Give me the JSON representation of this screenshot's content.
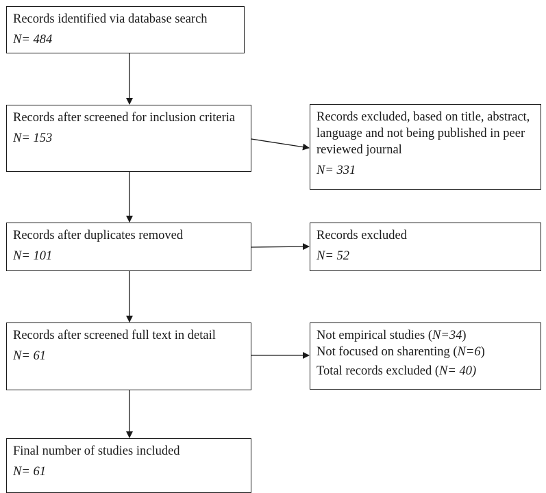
{
  "boxes": {
    "identified": {
      "label": "Records identified via database search",
      "n": "N= 484"
    },
    "screened": {
      "label": "Records after screened for inclusion criteria",
      "n": "N= 153"
    },
    "excluded_screen": {
      "label": "Records excluded, based on title, abstract, language and not being published in peer reviewed journal",
      "n": "N= 331"
    },
    "duplicates": {
      "label": "Records after duplicates removed",
      "n": "N= 101"
    },
    "excluded_dup": {
      "label": "Records excluded",
      "n": "N= 52"
    },
    "fulltext": {
      "label": "Records after screened full text in detail",
      "n": "N= 61"
    },
    "excluded_full": {
      "line1_text": "Not empirical studies (",
      "line1_n": "N=34",
      "line1_close": ")",
      "line2_text": "Not focused on sharenting (",
      "line2_n": "N=6",
      "line2_close": ")",
      "line3_text": "Total records excluded (",
      "line3_n": "N= 40)"
    },
    "final": {
      "label": "Final number of studies included",
      "n": "N= 61"
    }
  }
}
